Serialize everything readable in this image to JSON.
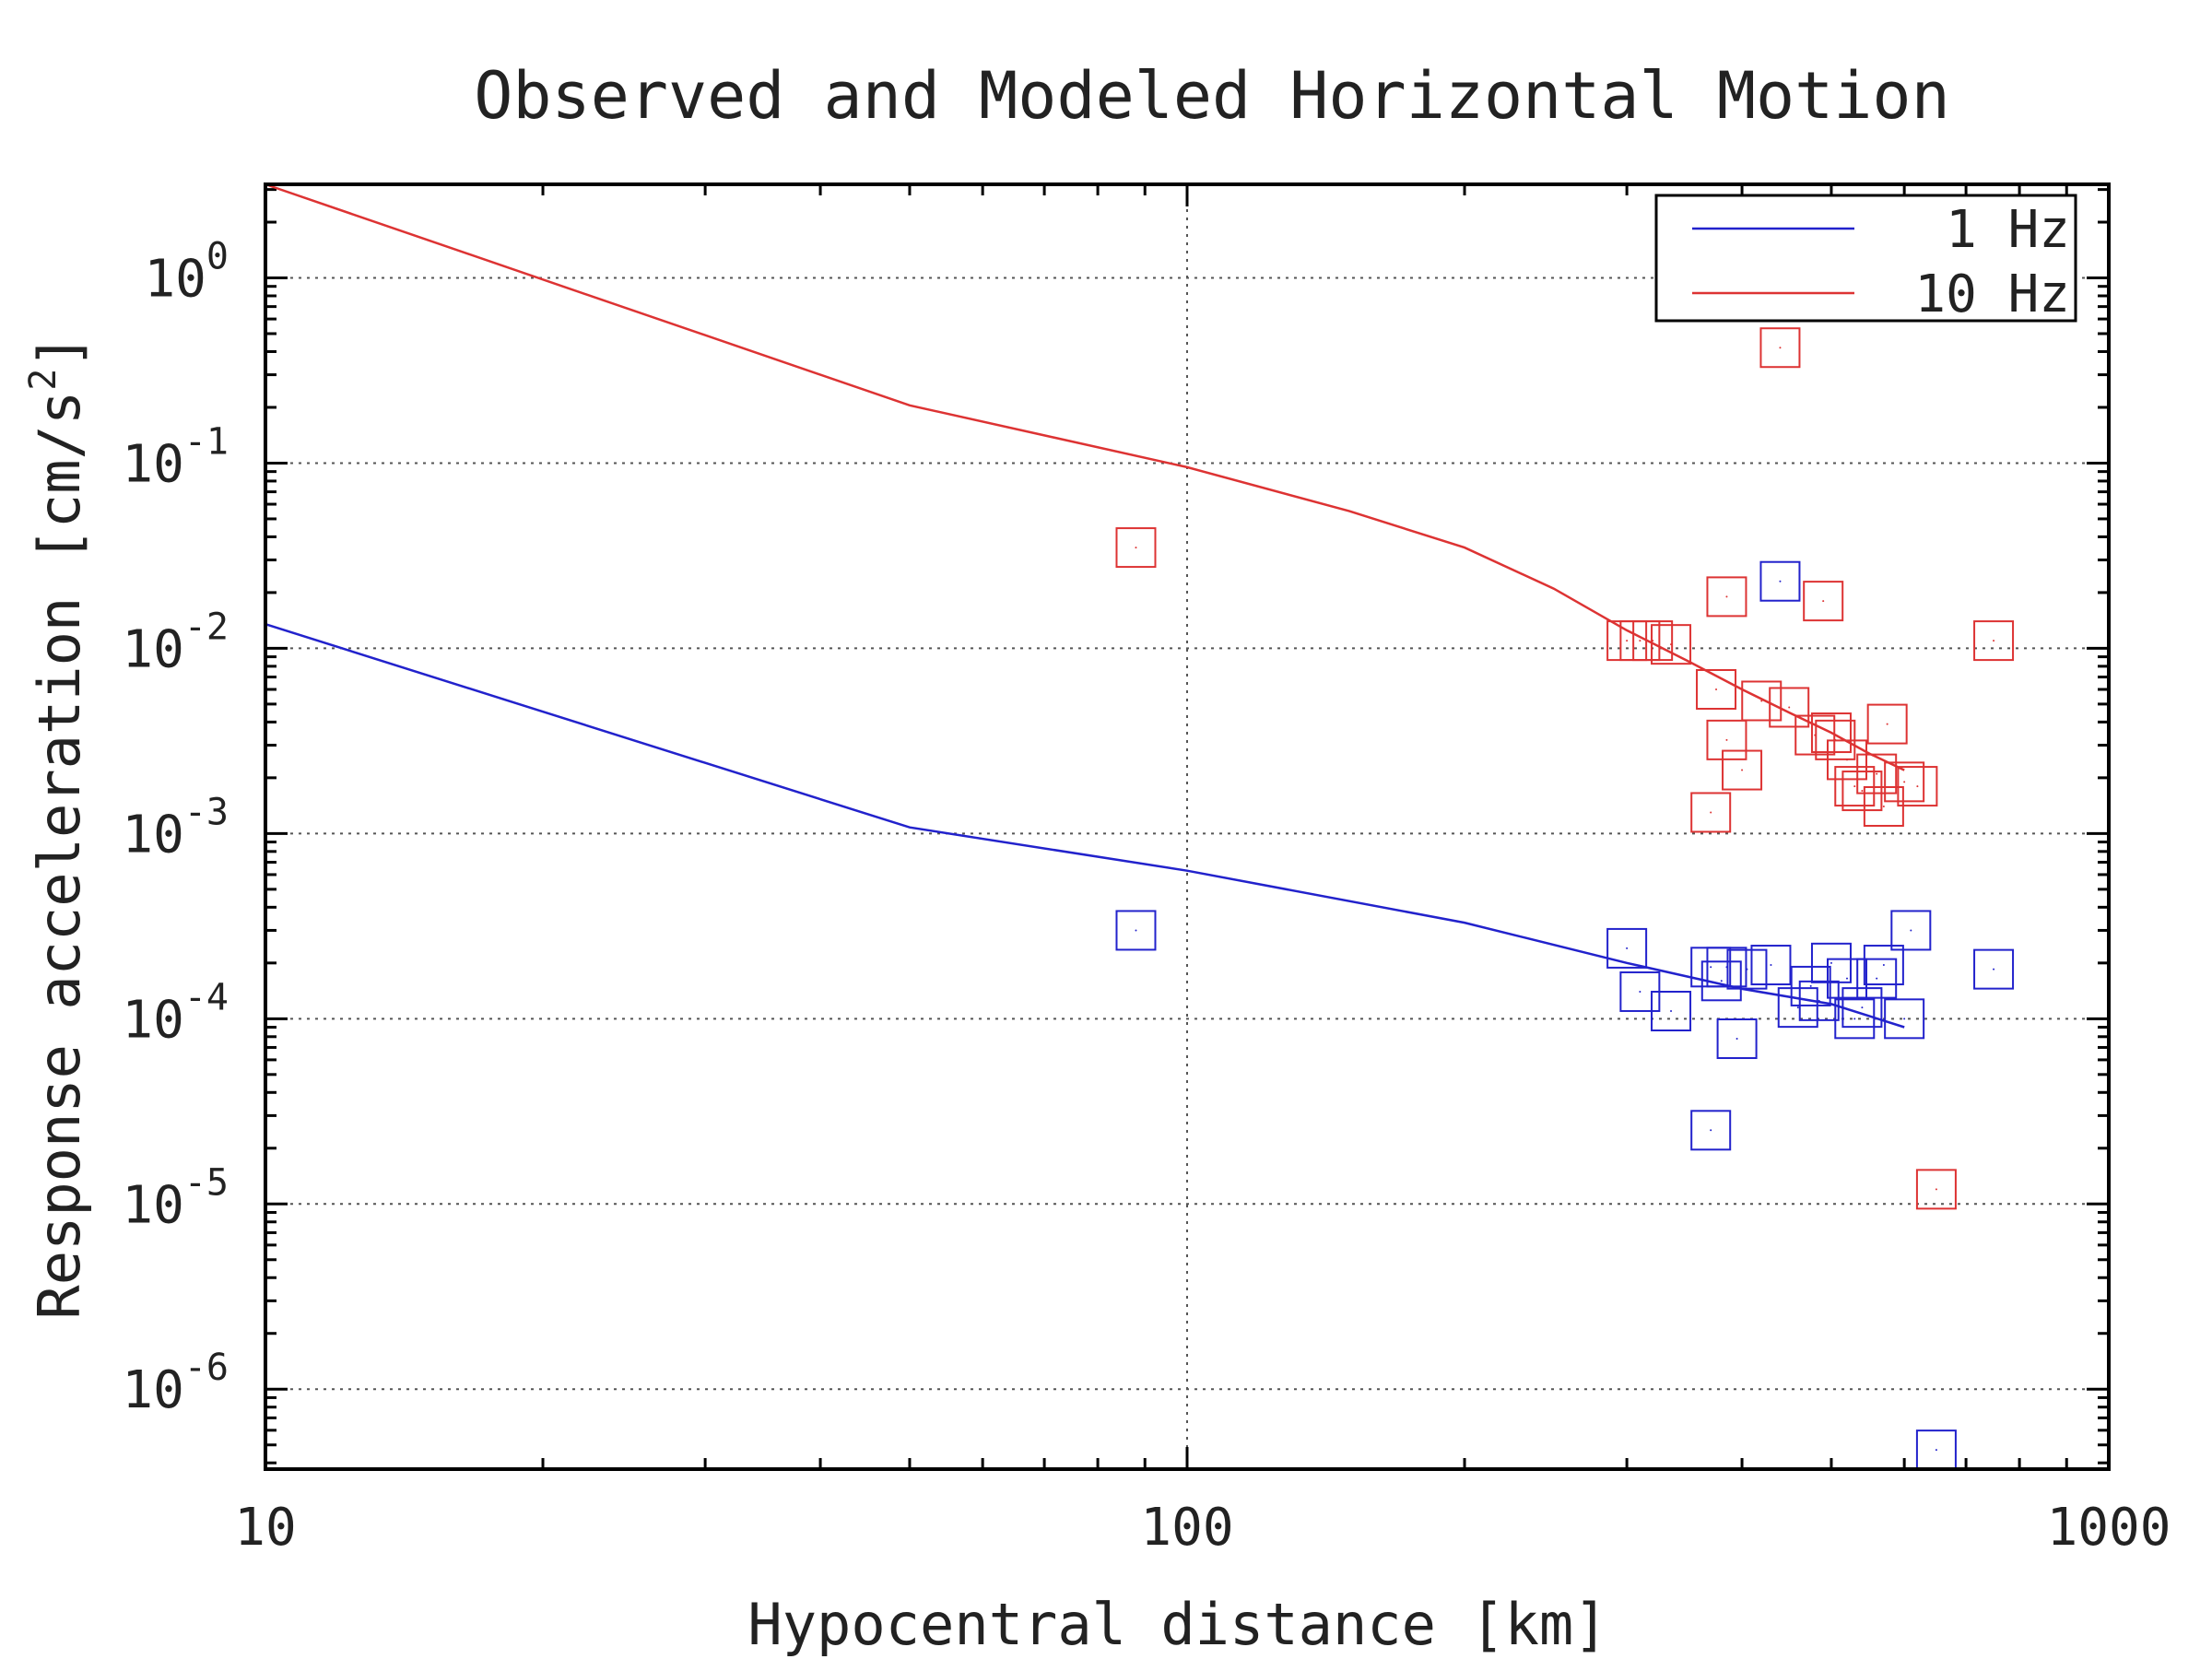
{
  "chart_data": {
    "type": "scatter",
    "title": "Observed and Modeled Horizontal Motion",
    "xlabel": "Hypocentral distance [km]",
    "ylabel": {
      "base": "Response acceleration [cm/s",
      "exp": "2",
      "close": "]"
    },
    "xscale": "log",
    "yscale": "log",
    "xlim": [
      10,
      1000
    ],
    "ylim": [
      3.7e-07,
      3.2
    ],
    "x_ticks": [
      {
        "value": 10,
        "label": "10"
      },
      {
        "value": 100,
        "label": "100"
      },
      {
        "value": 1000,
        "label": "1000"
      }
    ],
    "y_ticks": [
      {
        "value": 1,
        "base": "10",
        "exp": "0"
      },
      {
        "value": 0.1,
        "base": "10",
        "exp": "-1"
      },
      {
        "value": 0.01,
        "base": "10",
        "exp": "-2"
      },
      {
        "value": 0.001,
        "base": "10",
        "exp": "-3"
      },
      {
        "value": 0.0001,
        "base": "10",
        "exp": "-4"
      },
      {
        "value": 1e-05,
        "base": "10",
        "exp": "-5"
      },
      {
        "value": 1e-06,
        "base": "10",
        "exp": "-6"
      }
    ],
    "grid": true,
    "legend_position": "top-right",
    "series": [
      {
        "name": "1 Hz",
        "color": "#2222cc",
        "model_curve": [
          [
            10,
            0.0135
          ],
          [
            50,
            0.00108
          ],
          [
            100,
            0.00063
          ],
          [
            200,
            0.00033
          ],
          [
            300,
            0.0002
          ],
          [
            400,
            0.000145
          ],
          [
            500,
            0.00012
          ],
          [
            600,
            9e-05
          ]
        ],
        "observed": [
          [
            88,
            0.0003
          ],
          [
            300,
            0.00024
          ],
          [
            310,
            0.00014
          ],
          [
            335,
            0.00011
          ],
          [
            370,
            0.00019
          ],
          [
            380,
            0.00016
          ],
          [
            385,
            0.00019
          ],
          [
            395,
            7.8e-05
          ],
          [
            405,
            0.000185
          ],
          [
            430,
            0.000195
          ],
          [
            440,
            0.023
          ],
          [
            460,
            0.000115
          ],
          [
            475,
            0.00015
          ],
          [
            485,
            0.000125
          ],
          [
            500,
            0.0002
          ],
          [
            520,
            0.000165
          ],
          [
            530,
            0.0001
          ],
          [
            540,
            0.000115
          ],
          [
            560,
            0.000165
          ],
          [
            570,
            0.000195
          ],
          [
            600,
            0.0001
          ],
          [
            610,
            0.0003
          ],
          [
            650,
            4.7e-07
          ],
          [
            750,
            0.000185
          ],
          [
            370,
            2.5e-05
          ]
        ]
      },
      {
        "name": "10 Hz",
        "color": "#dd3333",
        "model_curve": [
          [
            10,
            3.2
          ],
          [
            50,
            0.205
          ],
          [
            100,
            0.095
          ],
          [
            150,
            0.055
          ],
          [
            200,
            0.035
          ],
          [
            250,
            0.021
          ],
          [
            300,
            0.0125
          ],
          [
            350,
            0.0085
          ],
          [
            400,
            0.006
          ],
          [
            450,
            0.0045
          ],
          [
            500,
            0.0035
          ],
          [
            550,
            0.0027
          ],
          [
            600,
            0.0022
          ]
        ],
        "observed": [
          [
            88,
            0.035
          ],
          [
            300,
            0.011
          ],
          [
            310,
            0.011
          ],
          [
            320,
            0.011
          ],
          [
            335,
            0.0105
          ],
          [
            370,
            0.0013
          ],
          [
            375,
            0.006
          ],
          [
            385,
            0.0032
          ],
          [
            385,
            0.019
          ],
          [
            400,
            0.0022
          ],
          [
            420,
            0.0052
          ],
          [
            440,
            0.42
          ],
          [
            450,
            0.0048
          ],
          [
            480,
            0.0034
          ],
          [
            490,
            0.018
          ],
          [
            500,
            0.0035
          ],
          [
            505,
            0.0032
          ],
          [
            520,
            0.0025
          ],
          [
            530,
            0.0018
          ],
          [
            540,
            0.0017
          ],
          [
            560,
            0.0021
          ],
          [
            570,
            0.0014
          ],
          [
            575,
            0.0039
          ],
          [
            600,
            0.0019
          ],
          [
            620,
            0.0018
          ],
          [
            650,
            1.2e-05
          ],
          [
            750,
            0.011
          ]
        ]
      }
    ]
  }
}
